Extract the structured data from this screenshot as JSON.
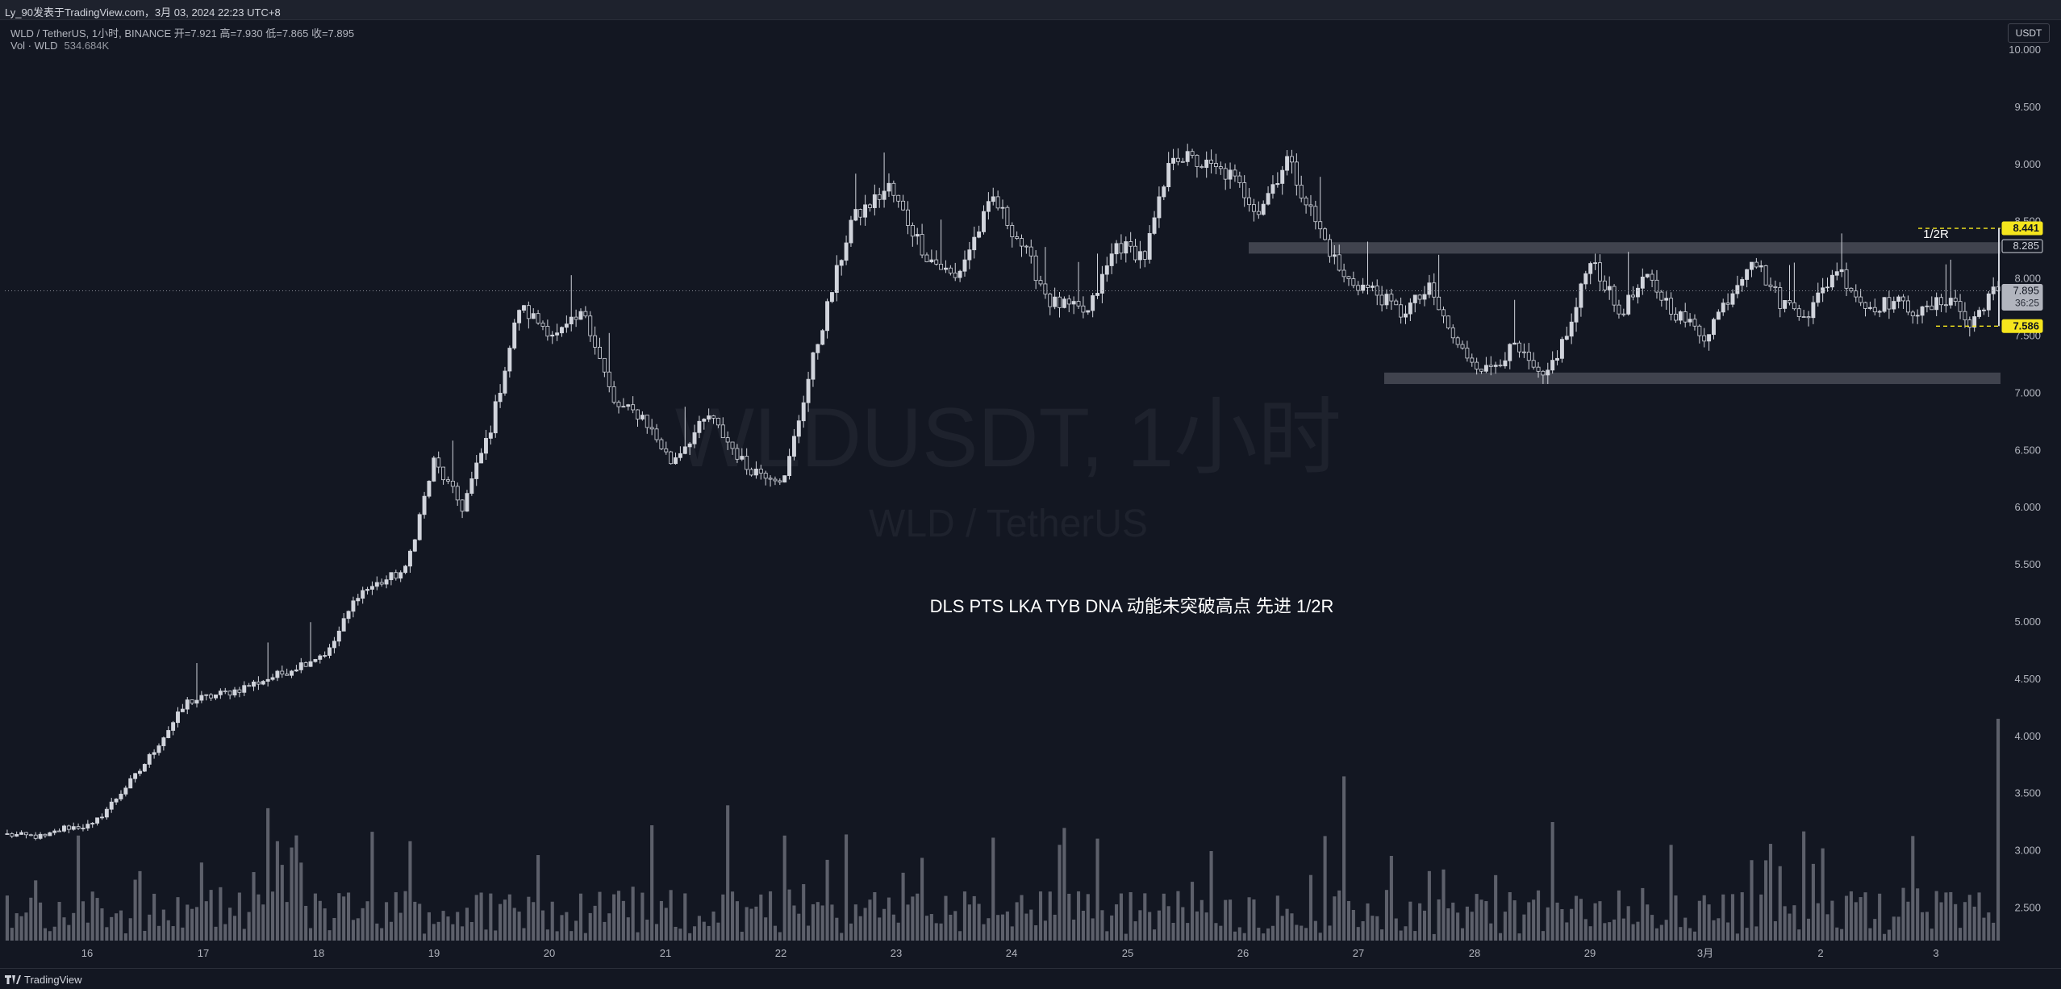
{
  "header": {
    "byline": "Ly_90发表于TradingView.com，3月 03, 2024 22:23 UTC+8",
    "symbol_line": "WLD / TetherUS, 1小时, BINANCE  开=7.921  高=7.930  低=7.865  收=7.895",
    "volume_label": "Vol · WLD",
    "volume_value": "534.684K",
    "currency": "USDT"
  },
  "watermark": {
    "main": "WLDUSDT, 1小时",
    "sub": "WLD / TetherUS"
  },
  "footer": {
    "brand": "TradingView"
  },
  "colors": {
    "background": "#131722",
    "candle": "#d1d4dc",
    "volume": "#5d606b",
    "zone": "#50535e",
    "highlight": "#f5e51d",
    "grid_text": "#b2b5be"
  },
  "chart_data": {
    "type": "candlestick",
    "title": "",
    "xlabel": "",
    "ylabel": "",
    "ylim": [
      2.2,
      10.0
    ],
    "y_ticks": [
      "2.500",
      "3.000",
      "3.500",
      "4.000",
      "4.500",
      "5.000",
      "5.500",
      "6.000",
      "6.500",
      "7.000",
      "7.500",
      "8.000",
      "8.500",
      "9.000",
      "9.500",
      "10.000"
    ],
    "x_ticks": [
      "16",
      "17",
      "18",
      "19",
      "20",
      "21",
      "22",
      "23",
      "24",
      "25",
      "26",
      "27",
      "28",
      "29",
      "3月",
      "2",
      "3"
    ],
    "price_anchors": [
      {
        "x": 0,
        "close": 3.14
      },
      {
        "x": 8,
        "close": 3.12
      },
      {
        "x": 12,
        "close": 3.2
      },
      {
        "x": 18,
        "close": 3.22
      },
      {
        "x": 28,
        "close": 3.7
      },
      {
        "x": 38,
        "close": 4.3
      },
      {
        "x": 48,
        "close": 4.4
      },
      {
        "x": 58,
        "close": 4.55
      },
      {
        "x": 68,
        "close": 4.75
      },
      {
        "x": 74,
        "close": 5.25
      },
      {
        "x": 84,
        "close": 5.45
      },
      {
        "x": 90,
        "close": 6.4
      },
      {
        "x": 96,
        "close": 6.0
      },
      {
        "x": 102,
        "close": 6.7
      },
      {
        "x": 108,
        "close": 7.75
      },
      {
        "x": 116,
        "close": 7.5
      },
      {
        "x": 122,
        "close": 7.7
      },
      {
        "x": 128,
        "close": 6.9
      },
      {
        "x": 134,
        "close": 6.8
      },
      {
        "x": 140,
        "close": 6.4
      },
      {
        "x": 148,
        "close": 6.8
      },
      {
        "x": 156,
        "close": 6.35
      },
      {
        "x": 164,
        "close": 6.25
      },
      {
        "x": 170,
        "close": 7.3
      },
      {
        "x": 178,
        "close": 8.5
      },
      {
        "x": 186,
        "close": 8.8
      },
      {
        "x": 194,
        "close": 8.2
      },
      {
        "x": 200,
        "close": 8.0
      },
      {
        "x": 208,
        "close": 8.7
      },
      {
        "x": 214,
        "close": 8.3
      },
      {
        "x": 220,
        "close": 7.8
      },
      {
        "x": 228,
        "close": 7.7
      },
      {
        "x": 234,
        "close": 8.3
      },
      {
        "x": 240,
        "close": 8.2
      },
      {
        "x": 246,
        "close": 9.1
      },
      {
        "x": 252,
        "close": 9.0
      },
      {
        "x": 258,
        "close": 8.9
      },
      {
        "x": 264,
        "close": 8.6
      },
      {
        "x": 270,
        "close": 9.05
      },
      {
        "x": 276,
        "close": 8.5
      },
      {
        "x": 282,
        "close": 8.0
      },
      {
        "x": 288,
        "close": 7.9
      },
      {
        "x": 294,
        "close": 7.7
      },
      {
        "x": 300,
        "close": 7.9
      },
      {
        "x": 306,
        "close": 7.4
      },
      {
        "x": 312,
        "close": 7.2
      },
      {
        "x": 318,
        "close": 7.4
      },
      {
        "x": 324,
        "close": 7.1
      },
      {
        "x": 330,
        "close": 7.6
      },
      {
        "x": 334,
        "close": 8.2
      },
      {
        "x": 340,
        "close": 7.7
      },
      {
        "x": 346,
        "close": 8.0
      },
      {
        "x": 352,
        "close": 7.7
      },
      {
        "x": 358,
        "close": 7.5
      },
      {
        "x": 364,
        "close": 7.9
      },
      {
        "x": 368,
        "close": 8.2
      },
      {
        "x": 374,
        "close": 7.8
      },
      {
        "x": 380,
        "close": 7.7
      },
      {
        "x": 386,
        "close": 8.1
      },
      {
        "x": 392,
        "close": 7.75
      },
      {
        "x": 398,
        "close": 7.8
      },
      {
        "x": 404,
        "close": 7.7
      },
      {
        "x": 410,
        "close": 7.85
      },
      {
        "x": 414,
        "close": 7.58
      },
      {
        "x": 418,
        "close": 7.86
      },
      {
        "x": 420,
        "close": 7.895
      }
    ],
    "last_close": 7.895,
    "candle_count": 421,
    "levels": [
      {
        "label": "8.441",
        "value": 8.441,
        "style": "highlight"
      },
      {
        "label": "8.285",
        "value": 8.285,
        "style": "outline"
      },
      {
        "label": "7.895",
        "value": 7.895,
        "style": "current",
        "sub": "36:25"
      },
      {
        "label": "7.586",
        "value": 7.586,
        "style": "highlight"
      }
    ],
    "zones": [
      {
        "name": "upper",
        "top": 8.32,
        "bottom": 8.22
      },
      {
        "name": "lower",
        "top": 7.18,
        "bottom": 7.08
      }
    ],
    "annotations": [
      {
        "text": "DLS PTS LKA TYB DNA 动能未突破高点 先进 1/2R"
      },
      {
        "text": "1/2R"
      }
    ]
  }
}
